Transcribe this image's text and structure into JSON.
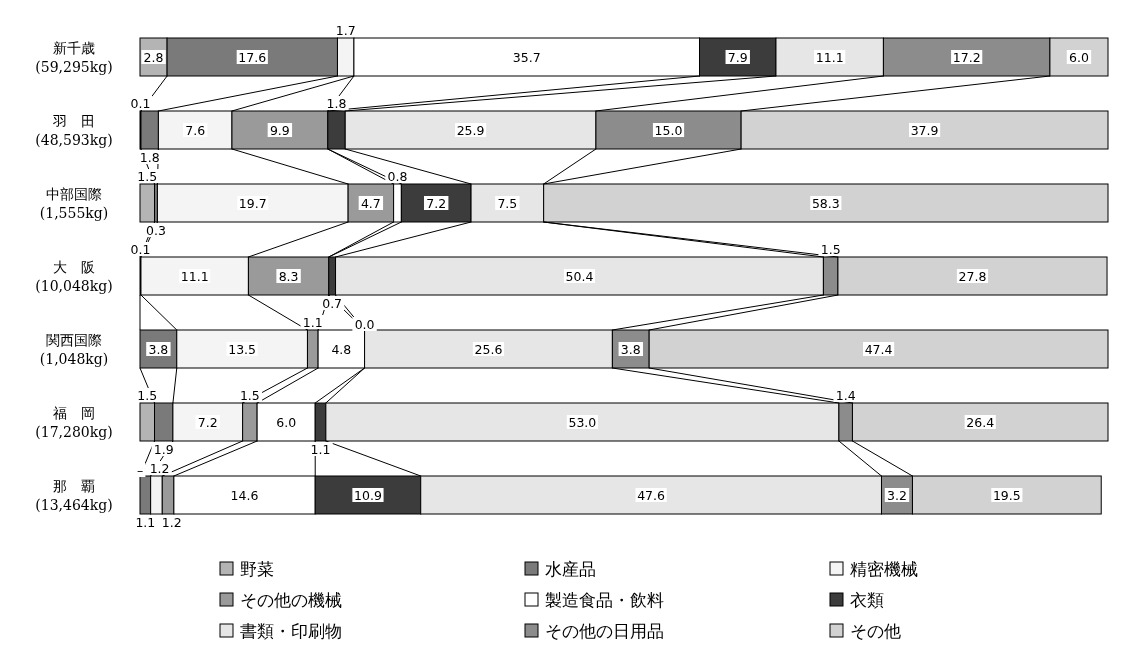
{
  "chart_data": {
    "type": "bar",
    "orientation": "horizontal",
    "stacked": true,
    "xlim": [
      0,
      100
    ],
    "tick_labels": "y",
    "legend": "bottom",
    "categories": [
      "新千歳\n(59,295kg)",
      "羽　田\n(48,593kg)",
      "中部国際\n(1,555kg)",
      "大　阪\n(10,048kg)",
      "関西国際\n(1,048kg)",
      "福　岡\n(17,280kg)",
      "那　覇\n(13,464kg)"
    ],
    "series": [
      {
        "name": "野菜",
        "color": "#b4b4b4",
        "values": [
          2.8,
          0.1,
          1.5,
          null,
          null,
          1.5,
          null
        ],
        "value_labels": [
          "2.8",
          "0.1",
          "1.5",
          null,
          null,
          "1.5",
          "–"
        ]
      },
      {
        "name": "水産品",
        "color": "#7a7a7a",
        "values": [
          17.6,
          1.8,
          0.3,
          0.1,
          3.8,
          1.9,
          1.1
        ],
        "value_labels": [
          "17.6",
          "1.8",
          "0.3",
          "0.1",
          "3.8",
          "1.9",
          "1.1"
        ]
      },
      {
        "name": "精密機械",
        "color": "#f4f4f4",
        "values": [
          1.7,
          7.6,
          19.7,
          11.1,
          13.5,
          7.2,
          1.2
        ],
        "value_labels": [
          "1.7",
          "7.6",
          "19.7",
          "11.1",
          "13.5",
          "7.2",
          "1.2"
        ]
      },
      {
        "name": "その他の機械",
        "color": "#9a9a9a",
        "values": [
          null,
          9.9,
          4.7,
          8.3,
          1.1,
          1.5,
          1.2
        ],
        "value_labels": [
          null,
          "9.9",
          "4.7",
          "8.3",
          "1.1",
          "1.5",
          "1.2"
        ]
      },
      {
        "name": "製造食品・飲料",
        "color": "#ffffff",
        "values": [
          35.7,
          null,
          0.8,
          null,
          4.8,
          6.0,
          14.6
        ],
        "value_labels": [
          "35.7",
          null,
          "0.8",
          null,
          "4.8",
          "6.0",
          "14.6"
        ]
      },
      {
        "name": "衣類",
        "color": "#3c3c3c",
        "values": [
          7.9,
          1.8,
          7.2,
          0.7,
          null,
          1.1,
          10.9
        ],
        "value_labels": [
          "7.9",
          "1.8",
          "7.2",
          "0.7",
          "0.0",
          "1.1",
          "10.9"
        ]
      },
      {
        "name": "書類・印刷物",
        "color": "#e6e6e6",
        "values": [
          11.1,
          25.9,
          7.5,
          50.4,
          25.6,
          53.0,
          47.6
        ],
        "value_labels": [
          "11.1",
          "25.9",
          "7.5",
          "50.4",
          "25.6",
          "53.0",
          "47.6"
        ]
      },
      {
        "name": "その他の日用品",
        "color": "#8c8c8c",
        "values": [
          17.2,
          15.0,
          null,
          1.5,
          3.8,
          1.4,
          3.2
        ],
        "value_labels": [
          "17.2",
          "15.0",
          null,
          "1.5",
          "3.8",
          "1.4",
          "3.2"
        ]
      },
      {
        "name": "その他",
        "color": "#d2d2d2",
        "values": [
          6.0,
          37.9,
          58.3,
          27.8,
          47.4,
          26.4,
          19.5
        ],
        "value_labels": [
          "6.0",
          "37.9",
          "58.3",
          "27.8",
          "47.4",
          "26.4",
          "19.5"
        ]
      }
    ]
  }
}
